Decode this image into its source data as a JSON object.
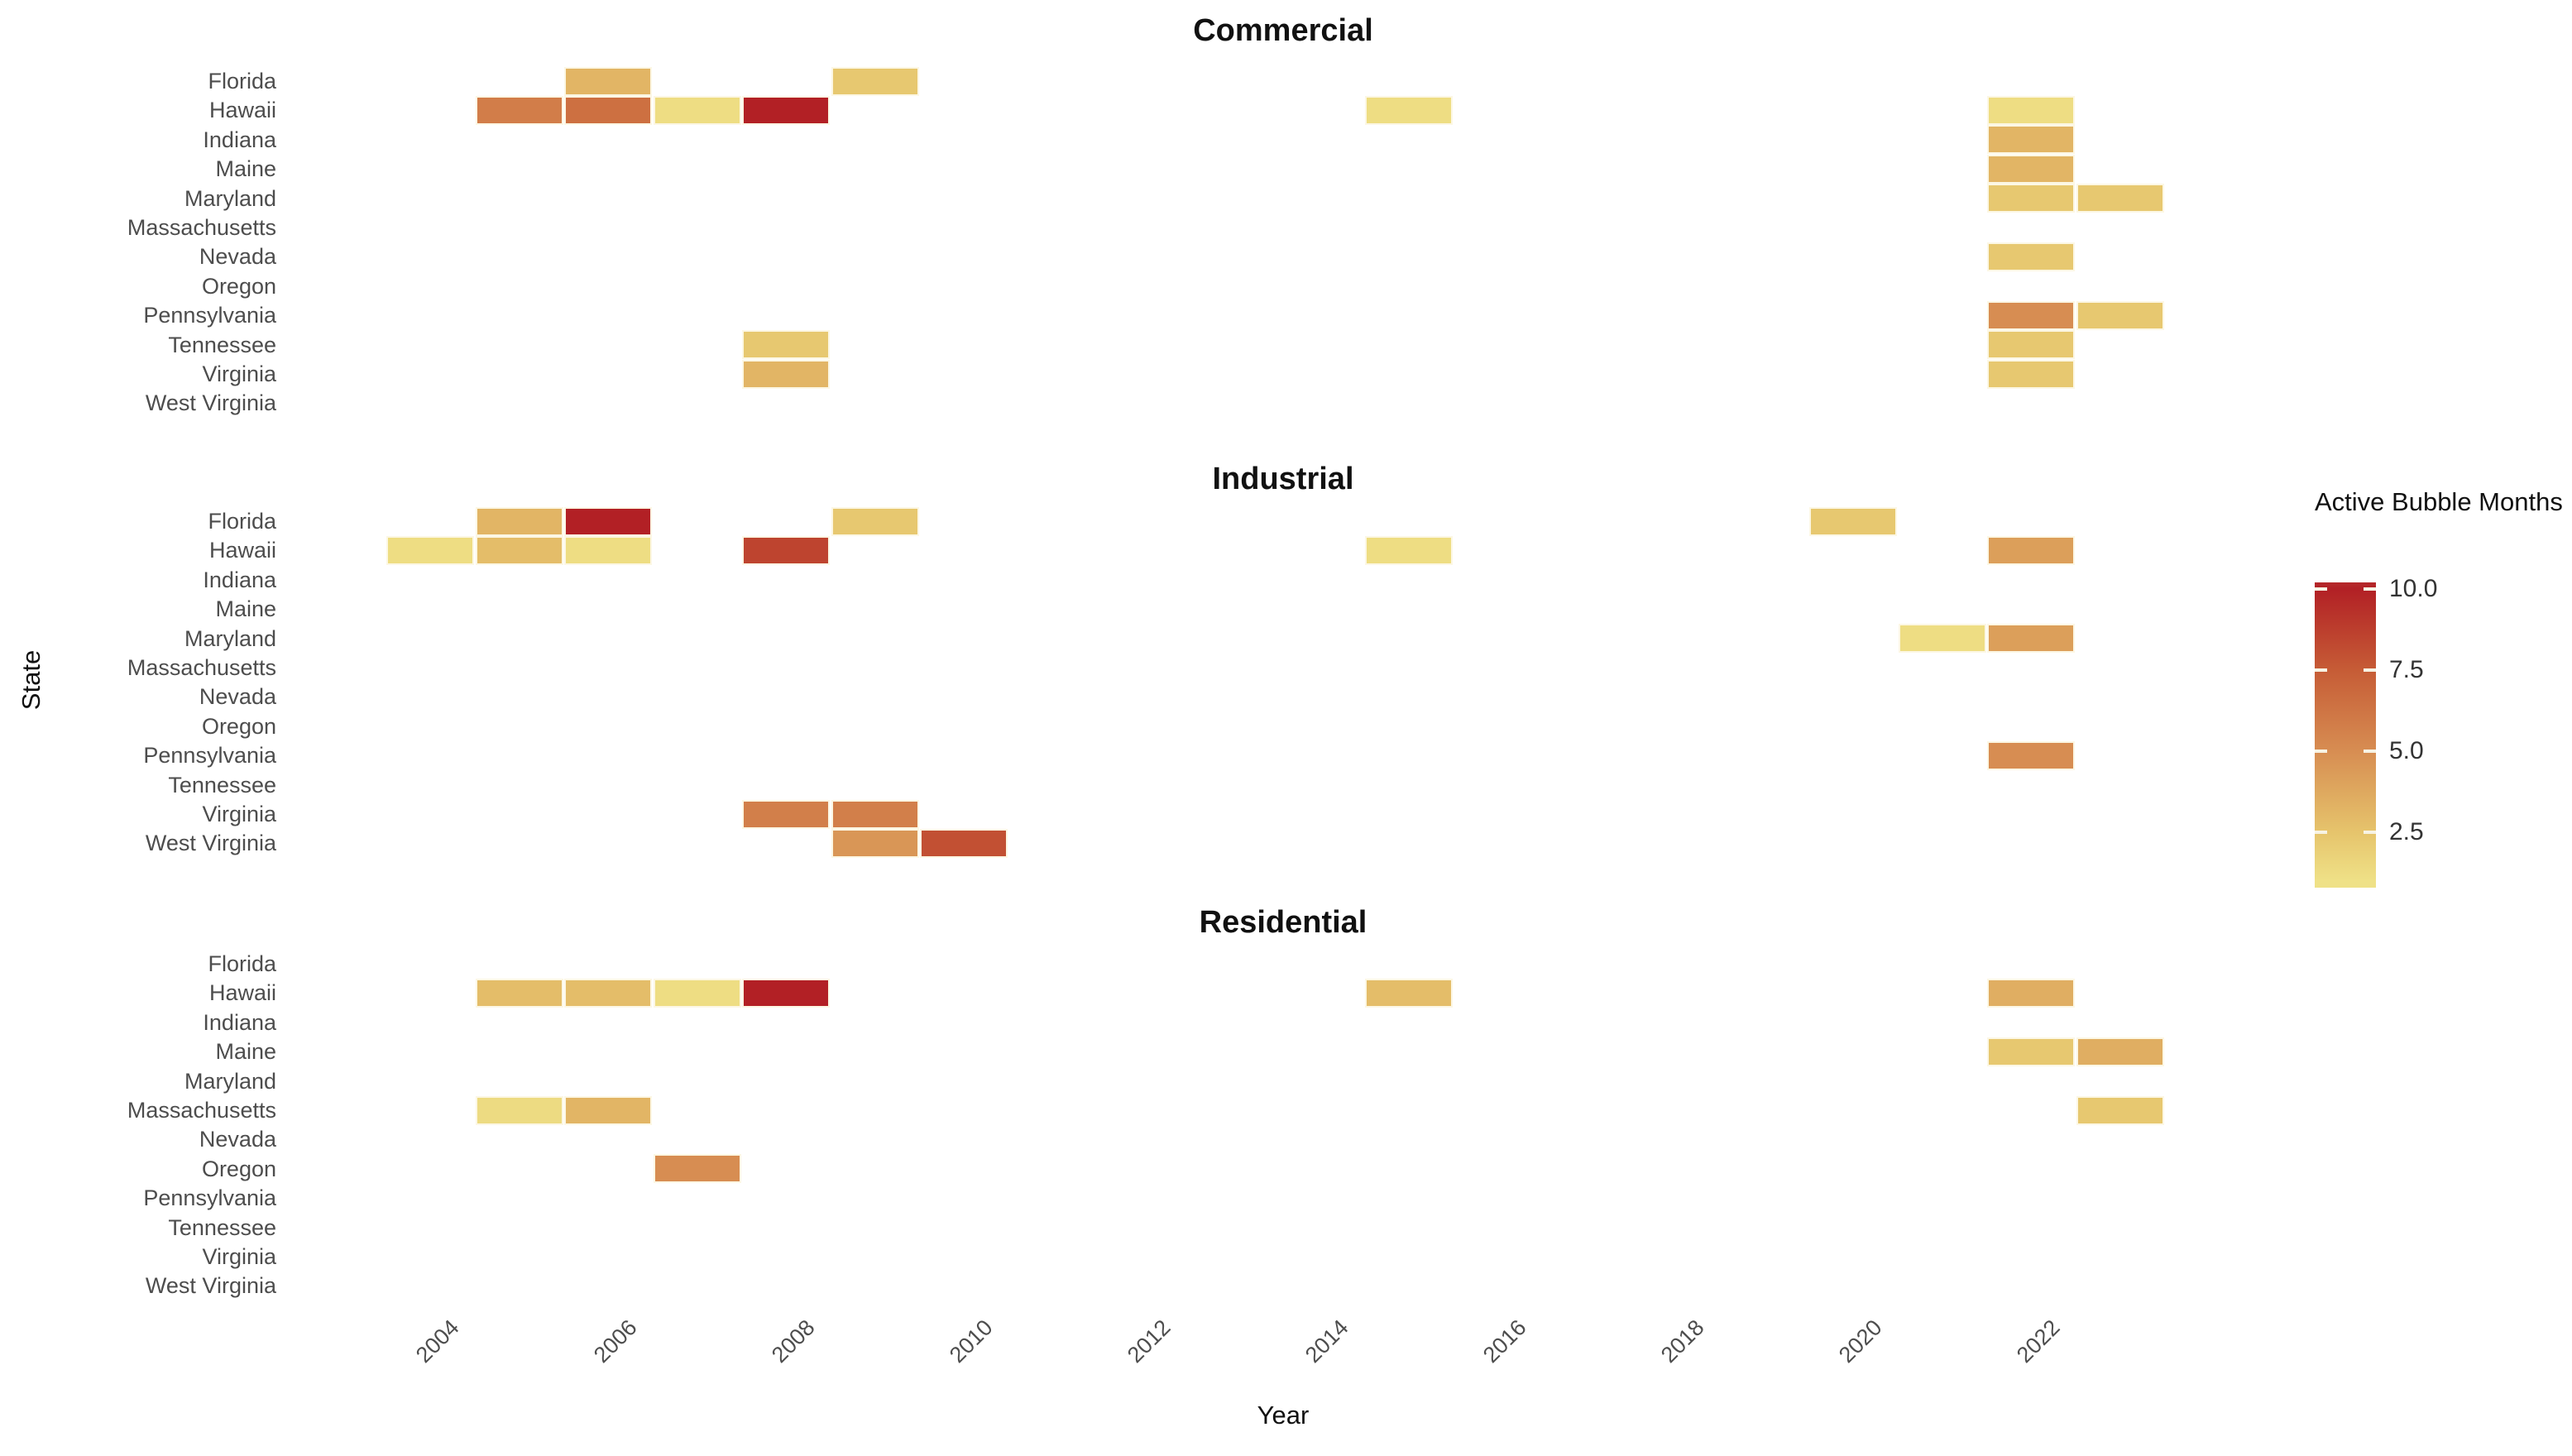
{
  "chart_data": {
    "type": "heatmap",
    "facets": [
      "Commercial",
      "Industrial",
      "Residential"
    ],
    "xlabel": "Year",
    "ylabel": "State",
    "x_range": [
      2004,
      2023
    ],
    "x_tick_years": [
      2004,
      2006,
      2008,
      2010,
      2012,
      2014,
      2016,
      2018,
      2020,
      2022
    ],
    "x_tick_labels": [
      "2004",
      "2006",
      "2008",
      "2010",
      "2012",
      "2014",
      "2016",
      "2018",
      "2020",
      "2022"
    ],
    "states": [
      "Florida",
      "Hawaii",
      "Indiana",
      "Maine",
      "Maryland",
      "Massachusetts",
      "Nevada",
      "Oregon",
      "Pennsylvania",
      "Tennessee",
      "Virginia",
      "West Virginia"
    ],
    "grid": false,
    "legend": {
      "title": "Active Bubble Months",
      "position": "right",
      "tick_labels": [
        "10.0",
        "7.5",
        "5.0",
        "2.5"
      ],
      "tick_values": [
        10.0,
        7.5,
        5.0,
        2.5
      ],
      "bar_value_range": [
        0.8,
        10.2
      ],
      "color_stops": [
        {
          "value": 1.0,
          "color": "#EFE187"
        },
        {
          "value": 2.5,
          "color": "#E6C46C"
        },
        {
          "value": 5.0,
          "color": "#D78D52"
        },
        {
          "value": 7.5,
          "color": "#C65C36"
        },
        {
          "value": 10.0,
          "color": "#B22025"
        }
      ]
    },
    "series": [
      {
        "facet": "Commercial",
        "tiles": [
          {
            "state": "Florida",
            "year": 2006,
            "months": 3.2
          },
          {
            "state": "Florida",
            "year": 2009,
            "months": 2.3
          },
          {
            "state": "Hawaii",
            "year": 2005,
            "months": 5.8
          },
          {
            "state": "Hawaii",
            "year": 2006,
            "months": 6.5
          },
          {
            "state": "Hawaii",
            "year": 2007,
            "months": 1.2
          },
          {
            "state": "Hawaii",
            "year": 2008,
            "months": 10.0
          },
          {
            "state": "Hawaii",
            "year": 2015,
            "months": 1.2
          },
          {
            "state": "Hawaii",
            "year": 2022,
            "months": 1.2
          },
          {
            "state": "Indiana",
            "year": 2022,
            "months": 3.2
          },
          {
            "state": "Maine",
            "year": 2022,
            "months": 3.2
          },
          {
            "state": "Maryland",
            "year": 2022,
            "months": 2.3
          },
          {
            "state": "Maryland",
            "year": 2023,
            "months": 2.3
          },
          {
            "state": "Nevada",
            "year": 2022,
            "months": 2.3
          },
          {
            "state": "Pennsylvania",
            "year": 2022,
            "months": 5.0
          },
          {
            "state": "Pennsylvania",
            "year": 2023,
            "months": 2.3
          },
          {
            "state": "Tennessee",
            "year": 2008,
            "months": 2.3
          },
          {
            "state": "Tennessee",
            "year": 2022,
            "months": 2.3
          },
          {
            "state": "Virginia",
            "year": 2008,
            "months": 3.2
          },
          {
            "state": "Virginia",
            "year": 2022,
            "months": 2.3
          }
        ]
      },
      {
        "facet": "Industrial",
        "tiles": [
          {
            "state": "Florida",
            "year": 2005,
            "months": 3.2
          },
          {
            "state": "Florida",
            "year": 2006,
            "months": 10.0
          },
          {
            "state": "Florida",
            "year": 2009,
            "months": 2.3
          },
          {
            "state": "Florida",
            "year": 2020,
            "months": 2.3
          },
          {
            "state": "Hawaii",
            "year": 2004,
            "months": 1.2
          },
          {
            "state": "Hawaii",
            "year": 2005,
            "months": 2.8
          },
          {
            "state": "Hawaii",
            "year": 2006,
            "months": 1.2
          },
          {
            "state": "Hawaii",
            "year": 2008,
            "months": 8.5
          },
          {
            "state": "Hawaii",
            "year": 2015,
            "months": 1.2
          },
          {
            "state": "Hawaii",
            "year": 2022,
            "months": 4.2
          },
          {
            "state": "Maryland",
            "year": 2021,
            "months": 1.2
          },
          {
            "state": "Maryland",
            "year": 2022,
            "months": 4.2
          },
          {
            "state": "Pennsylvania",
            "year": 2022,
            "months": 5.0
          },
          {
            "state": "Virginia",
            "year": 2008,
            "months": 5.7
          },
          {
            "state": "Virginia",
            "year": 2009,
            "months": 5.7
          },
          {
            "state": "West Virginia",
            "year": 2009,
            "months": 4.6
          },
          {
            "state": "West Virginia",
            "year": 2010,
            "months": 8.0
          }
        ]
      },
      {
        "facet": "Residential",
        "tiles": [
          {
            "state": "Hawaii",
            "year": 2005,
            "months": 2.8
          },
          {
            "state": "Hawaii",
            "year": 2006,
            "months": 2.8
          },
          {
            "state": "Hawaii",
            "year": 2007,
            "months": 1.2
          },
          {
            "state": "Hawaii",
            "year": 2008,
            "months": 10.0
          },
          {
            "state": "Hawaii",
            "year": 2015,
            "months": 2.8
          },
          {
            "state": "Hawaii",
            "year": 2022,
            "months": 3.5
          },
          {
            "state": "Maine",
            "year": 2022,
            "months": 2.3
          },
          {
            "state": "Maine",
            "year": 2023,
            "months": 3.5
          },
          {
            "state": "Massachusetts",
            "year": 2005,
            "months": 1.3
          },
          {
            "state": "Massachusetts",
            "year": 2006,
            "months": 3.2
          },
          {
            "state": "Massachusetts",
            "year": 2023,
            "months": 2.3
          },
          {
            "state": "Oregon",
            "year": 2007,
            "months": 5.0
          }
        ]
      }
    ]
  }
}
